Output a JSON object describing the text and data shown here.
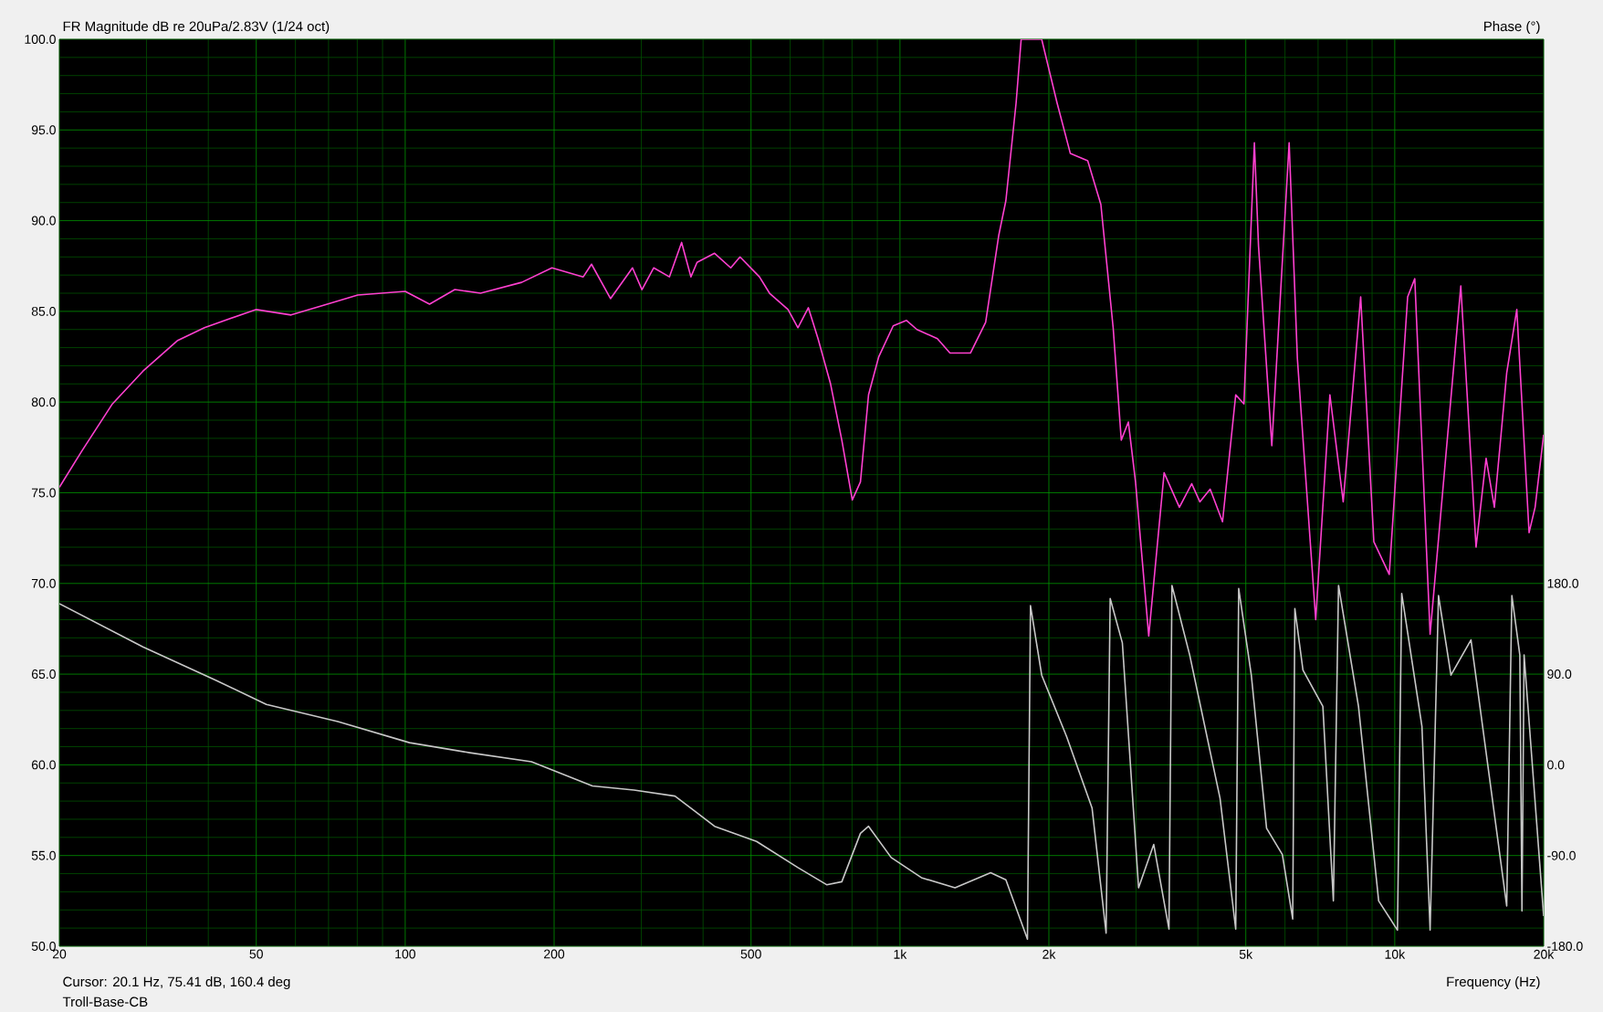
{
  "chart_data": {
    "type": "line",
    "title": "FR Magnitude dB re 20uPa/2.83V (1/24 oct)",
    "xlabel": "Frequency (Hz)",
    "y2label": "Phase (°)",
    "annotations": [
      "Cursor: 20.1 Hz, 75.41 dB, 160.4 deg",
      "Troll-Base-CB"
    ],
    "log": "x",
    "grid": true,
    "marker": "none",
    "xlim": [
      20,
      20000
    ],
    "xticks": [
      20,
      50,
      100,
      200,
      500,
      {
        "value": 1000,
        "label": "1k"
      },
      {
        "value": 2000,
        "label": "2k"
      },
      {
        "value": 5000,
        "label": "5k"
      },
      {
        "value": 10000,
        "label": "10k"
      },
      {
        "value": 20000,
        "label": "20k"
      },
      {
        "value": 30,
        "label": null
      },
      {
        "value": 40,
        "label": null
      },
      {
        "value": 60,
        "label": null
      },
      {
        "value": 70,
        "label": null
      },
      {
        "value": 80,
        "label": null
      },
      {
        "value": 90,
        "label": null
      },
      {
        "value": 300,
        "label": null
      },
      {
        "value": 400,
        "label": null
      },
      {
        "value": 600,
        "label": null
      },
      {
        "value": 700,
        "label": null
      },
      {
        "value": 800,
        "label": null
      },
      {
        "value": 900,
        "label": null
      },
      {
        "value": 3000,
        "label": null
      },
      {
        "value": 4000,
        "label": null
      },
      {
        "value": 6000,
        "label": null
      },
      {
        "value": 7000,
        "label": null
      },
      {
        "value": 8000,
        "label": null
      },
      {
        "value": 9000,
        "label": null
      }
    ],
    "ylim": [
      50,
      100
    ],
    "yticks": [
      {
        "value": 50,
        "label": "50.0"
      },
      {
        "value": 55,
        "label": "55.0"
      },
      {
        "value": 60,
        "label": "60.0"
      },
      {
        "value": 65,
        "label": "65.0"
      },
      {
        "value": 70,
        "label": "70.0"
      },
      {
        "value": 75,
        "label": "75.0"
      },
      {
        "value": 80,
        "label": "80.0"
      },
      {
        "value": 85,
        "label": "85.0"
      },
      {
        "value": 90,
        "label": "90.0"
      },
      {
        "value": 95,
        "label": "95.0"
      },
      {
        "value": 100,
        "label": "100.0"
      },
      {
        "value": 51,
        "label": null
      },
      {
        "value": 52,
        "label": null
      },
      {
        "value": 53,
        "label": null
      },
      {
        "value": 54,
        "label": null
      },
      {
        "value": 56,
        "label": null
      },
      {
        "value": 57,
        "label": null
      },
      {
        "value": 58,
        "label": null
      },
      {
        "value": 59,
        "label": null
      },
      {
        "value": 61,
        "label": null
      },
      {
        "value": 62,
        "label": null
      },
      {
        "value": 63,
        "label": null
      },
      {
        "value": 64,
        "label": null
      },
      {
        "value": 66,
        "label": null
      },
      {
        "value": 67,
        "label": null
      },
      {
        "value": 68,
        "label": null
      },
      {
        "value": 69,
        "label": null
      },
      {
        "value": 71,
        "label": null
      },
      {
        "value": 72,
        "label": null
      },
      {
        "value": 73,
        "label": null
      },
      {
        "value": 74,
        "label": null
      },
      {
        "value": 76,
        "label": null
      },
      {
        "value": 77,
        "label": null
      },
      {
        "value": 78,
        "label": null
      },
      {
        "value": 79,
        "label": null
      },
      {
        "value": 81,
        "label": null
      },
      {
        "value": 82,
        "label": null
      },
      {
        "value": 83,
        "label": null
      },
      {
        "value": 84,
        "label": null
      },
      {
        "value": 86,
        "label": null
      },
      {
        "value": 87,
        "label": null
      },
      {
        "value": 88,
        "label": null
      },
      {
        "value": 89,
        "label": null
      },
      {
        "value": 91,
        "label": null
      },
      {
        "value": 92,
        "label": null
      },
      {
        "value": 93,
        "label": null
      },
      {
        "value": 94,
        "label": null
      },
      {
        "value": 96,
        "label": null
      },
      {
        "value": 97,
        "label": null
      },
      {
        "value": 98,
        "label": null
      },
      {
        "value": 99,
        "label": null
      }
    ],
    "y2lim": [
      -180,
      720
    ],
    "y2ticks": [
      {
        "value": -180,
        "label": "-180.0"
      },
      {
        "value": -90,
        "label": "-90.0"
      },
      {
        "value": 0,
        "label": "0.0"
      },
      {
        "value": 90,
        "label": "90.0"
      },
      {
        "value": 180,
        "label": "180.0"
      }
    ],
    "series": [
      {
        "color": "#ff40d0",
        "x": [
          20,
          22.2,
          25.6,
          29.5,
          34.7,
          39.3,
          49.9,
          58.8,
          69.6,
          80.2,
          100,
          112,
          126,
          142,
          172,
          198,
          229,
          238,
          260,
          288,
          301,
          318,
          342,
          362,
          378,
          389,
          422,
          455,
          475,
          520,
          545,
          594,
          622,
          653,
          683,
          724,
          763,
          801,
          832,
          864,
          906,
          969,
          1031,
          1082,
          1190,
          1262,
          1388,
          1490,
          1584,
          1637,
          1717,
          1758,
          1934,
          2077,
          2210,
          2396,
          2547,
          2697,
          2801,
          2895,
          2993,
          3183,
          3419,
          3671,
          3888,
          4038,
          4236,
          4487,
          4771,
          4957,
          5204,
          5305,
          5644,
          6118,
          6357,
          6923,
          7396,
          7869,
          8534,
          9074,
          9748,
          10620,
          10977,
          11790,
          13600,
          14600,
          15300,
          15900,
          16840,
          17650,
          18690,
          19220,
          20000
        ],
        "values": [
          75.3,
          77.3,
          79.9,
          81.7,
          83.4,
          84.1,
          85.1,
          84.8,
          85.4,
          85.9,
          86.1,
          85.4,
          86.2,
          86.0,
          86.6,
          87.4,
          86.9,
          87.6,
          85.7,
          87.4,
          86.2,
          87.4,
          86.9,
          88.8,
          86.9,
          87.7,
          88.2,
          87.4,
          88.0,
          86.9,
          86.0,
          85.1,
          84.1,
          85.2,
          83.5,
          81.0,
          77.9,
          74.6,
          75.6,
          80.4,
          82.5,
          84.2,
          84.5,
          84.0,
          83.5,
          82.7,
          82.7,
          84.4,
          89.2,
          91.1,
          96.5,
          100,
          100,
          96.5,
          93.7,
          93.3,
          90.9,
          84.1,
          77.9,
          78.9,
          75.6,
          67.1,
          76.1,
          74.2,
          75.5,
          74.5,
          75.2,
          73.4,
          80.4,
          79.9,
          94.3,
          88.6,
          77.6,
          94.3,
          82.4,
          68.0,
          80.4,
          74.5,
          85.8,
          72.3,
          70.5,
          85.8,
          86.8,
          67.2,
          86.4,
          72.0,
          76.9,
          74.2,
          81.6,
          85.1,
          72.8,
          74.2,
          78.2
        ]
      },
      {
        "color": "#c8c8c8",
        "axis": "y2",
        "x": [
          20,
          29.5,
          41.4,
          52.4,
          73.1,
          102,
          135,
          180,
          239,
          290,
          351,
          422,
          513,
          622,
          711,
          763,
          832,
          864,
          960,
          1105,
          1292,
          1525,
          1637,
          1810,
          1836,
          1934,
          2172,
          2445,
          2610,
          2660,
          2815,
          3036,
          3258,
          3497,
          3546,
          3851,
          4435,
          4771,
          4838,
          5130,
          5508,
          5928,
          6220,
          6283,
          6524,
          7158,
          7516,
          7700,
          8448,
          9280,
          10128,
          10330,
          11350,
          11790,
          12260,
          12990,
          14260,
          16840,
          17250,
          17900,
          18080,
          18260,
          20000
        ],
        "values": [
          160,
          117,
          84,
          60,
          43,
          22,
          12,
          3,
          -21,
          -25,
          -31,
          -61,
          -76,
          -102,
          -119,
          -116,
          -68,
          -61,
          -92,
          -112,
          -122,
          -107,
          -114,
          -173,
          158,
          89,
          28,
          -43,
          -167,
          165,
          121,
          -122,
          -79,
          -163,
          178,
          109,
          -33,
          -163,
          175,
          89,
          -63,
          -89,
          -153,
          155,
          94,
          58,
          -135,
          178,
          58,
          -135,
          -164,
          170,
          38,
          -164,
          168,
          89,
          124,
          -140,
          168,
          109,
          -145,
          109,
          -150
        ]
      }
    ]
  }
}
